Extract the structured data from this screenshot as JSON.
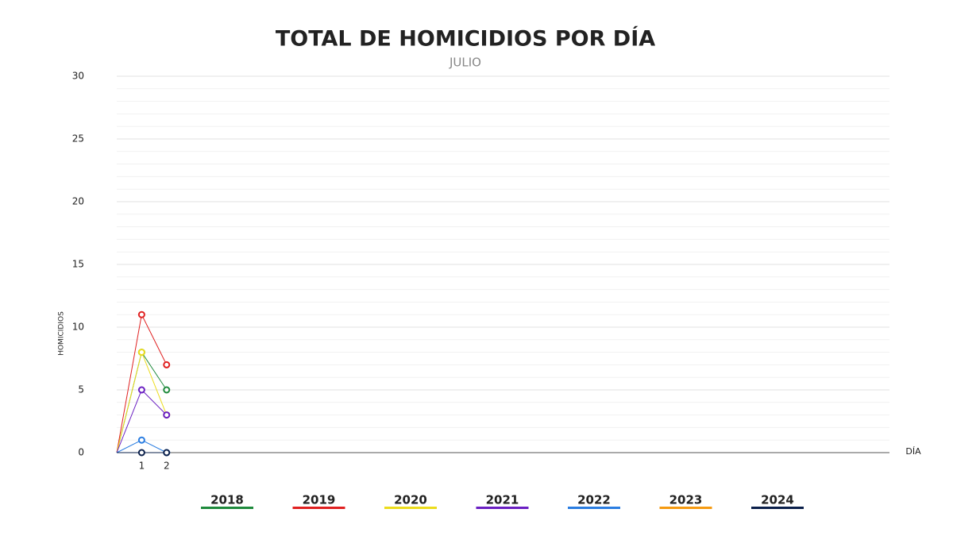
{
  "chart_data": {
    "type": "line",
    "title": "TOTAL DE HOMICIDIOS POR DÍA",
    "subtitle": "JULIO",
    "y_label": "HOMICIDIOS",
    "x_label": "DÍA",
    "x": [
      0,
      1,
      2
    ],
    "xlim": [
      0,
      31
    ],
    "xticks": [
      1,
      2
    ],
    "ylim": [
      0,
      30
    ],
    "yticks": [
      0,
      5,
      10,
      15,
      20,
      25,
      30
    ],
    "minor_yticks": [
      1,
      2,
      3,
      4,
      6,
      7,
      8,
      9,
      11,
      12,
      13,
      14,
      16,
      17,
      18,
      19,
      21,
      22,
      23,
      24,
      26,
      27,
      28,
      29
    ],
    "grid": true,
    "series": [
      {
        "name": "2018",
        "color": "#1e8a3c",
        "values": [
          0,
          8,
          5
        ]
      },
      {
        "name": "2019",
        "color": "#e02020",
        "values": [
          0,
          11,
          7
        ]
      },
      {
        "name": "2020",
        "color": "#ecdc1c",
        "values": [
          0,
          8,
          3
        ]
      },
      {
        "name": "2021",
        "color": "#6a1fc2",
        "values": [
          0,
          5,
          3
        ]
      },
      {
        "name": "2022",
        "color": "#2a7de1",
        "values": [
          0,
          1,
          0
        ]
      },
      {
        "name": "2023",
        "color": "#f59a10",
        "values": [
          null,
          null,
          null
        ]
      },
      {
        "name": "2024",
        "color": "#0a1f4a",
        "values": [
          0,
          0,
          0
        ]
      }
    ]
  }
}
